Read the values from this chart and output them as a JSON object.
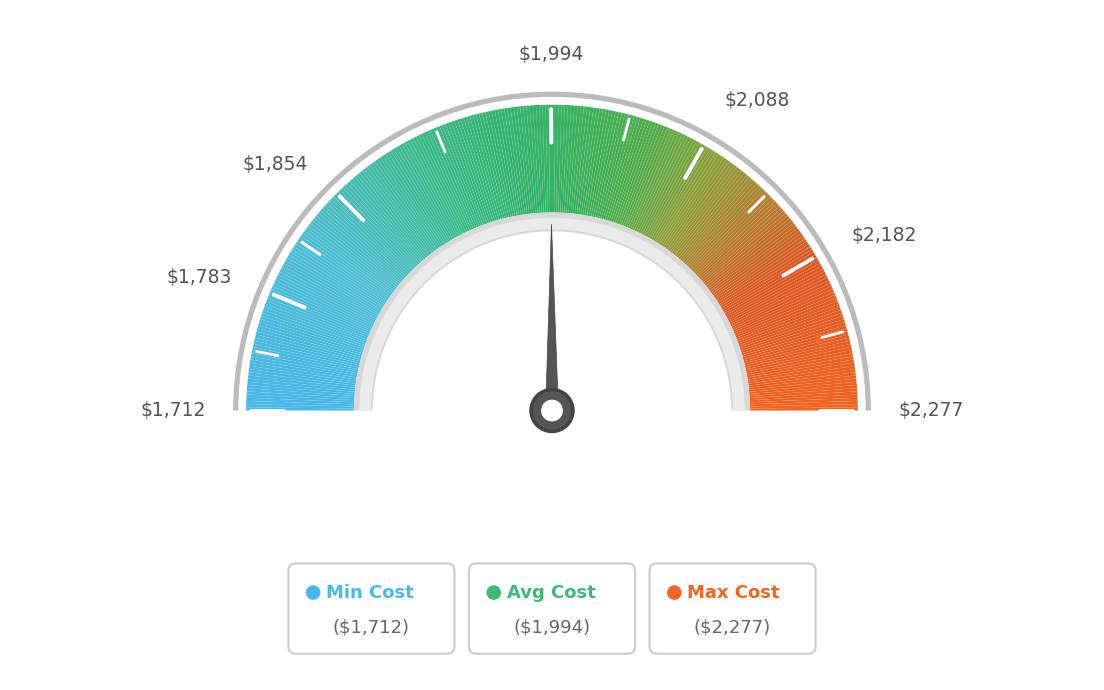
{
  "min_val": 1712,
  "max_val": 2277,
  "avg_val": 1994,
  "tick_labels": [
    "$1,712",
    "$1,783",
    "$1,854",
    "$1,994",
    "$2,088",
    "$2,182",
    "$2,277"
  ],
  "tick_values": [
    1712,
    1783,
    1854,
    1994,
    2088,
    2182,
    2277
  ],
  "legend": [
    {
      "label": "Min Cost",
      "sublabel": "($1,712)",
      "color": "#4ab8e8"
    },
    {
      "label": "Avg Cost",
      "sublabel": "($1,994)",
      "color": "#3dba7a"
    },
    {
      "label": "Max Cost",
      "sublabel": "($2,277)",
      "color": "#f26522"
    }
  ],
  "background_color": "#ffffff",
  "needle_value": 1994,
  "color_stops": [
    [
      0.0,
      [
        74,
        184,
        232
      ]
    ],
    [
      0.2,
      [
        80,
        190,
        210
      ]
    ],
    [
      0.35,
      [
        61,
        186,
        140
      ]
    ],
    [
      0.5,
      [
        52,
        178,
        100
      ]
    ],
    [
      0.6,
      [
        80,
        175,
        80
      ]
    ],
    [
      0.68,
      [
        140,
        160,
        60
      ]
    ],
    [
      0.75,
      [
        180,
        130,
        50
      ]
    ],
    [
      0.83,
      [
        220,
        90,
        40
      ]
    ],
    [
      1.0,
      [
        242,
        101,
        34
      ]
    ]
  ]
}
